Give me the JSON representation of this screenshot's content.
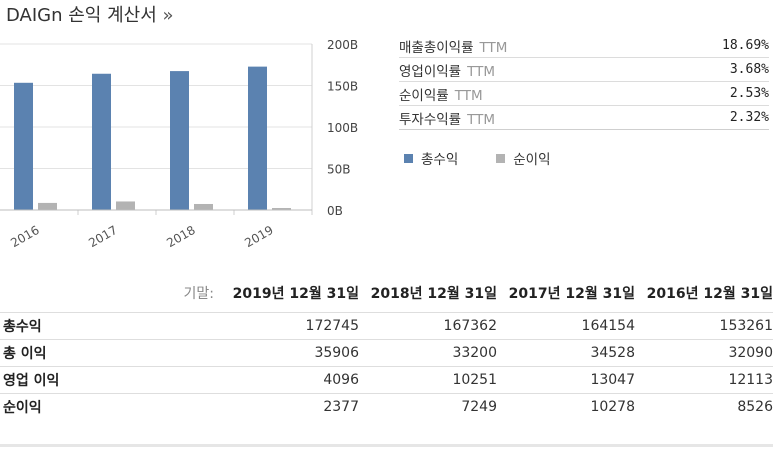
{
  "header": {
    "title": "DAIGn 손익 계산서",
    "arrow": "»"
  },
  "chart_data": {
    "type": "bar",
    "categories": [
      "2016",
      "2017",
      "2018",
      "2019"
    ],
    "series": [
      {
        "name": "총수익",
        "color": "#5b82b0",
        "values": [
          153261,
          164154,
          167362,
          172745
        ]
      },
      {
        "name": "순이익",
        "color": "#b3b3b3",
        "values": [
          8526,
          10278,
          7249,
          2377
        ]
      }
    ],
    "y_ticks": [
      "0B",
      "50B",
      "100B",
      "150B",
      "200B"
    ],
    "y_tick_values": [
      0,
      50000,
      100000,
      150000,
      200000
    ],
    "ylim": [
      0,
      200000
    ],
    "legend_position": "right"
  },
  "ratios": [
    {
      "label": "매출총이익률",
      "ttm": "TTM",
      "value": "18.69%"
    },
    {
      "label": "영업이익률",
      "ttm": "TTM",
      "value": "3.68%"
    },
    {
      "label": "순이익률",
      "ttm": "TTM",
      "value": "2.53%"
    },
    {
      "label": "투자수익률",
      "ttm": "TTM",
      "value": "2.32%"
    }
  ],
  "legend": [
    {
      "label": "총수익",
      "color": "#5b82b0"
    },
    {
      "label": "순이익",
      "color": "#b3b3b3"
    }
  ],
  "table": {
    "period_label": "기말:",
    "periods": [
      "2019년 12월 31일",
      "2018년 12월 31일",
      "2017년 12월 31일",
      "2016년 12월 31일"
    ],
    "rows": [
      {
        "name": "총수익",
        "values": [
          "172745",
          "167362",
          "164154",
          "153261"
        ]
      },
      {
        "name": "총 이익",
        "values": [
          "35906",
          "33200",
          "34528",
          "32090"
        ]
      },
      {
        "name": "영업 이익",
        "values": [
          "4096",
          "10251",
          "13047",
          "12113"
        ]
      },
      {
        "name": "순이익",
        "values": [
          "2377",
          "7249",
          "10278",
          "8526"
        ]
      }
    ]
  }
}
